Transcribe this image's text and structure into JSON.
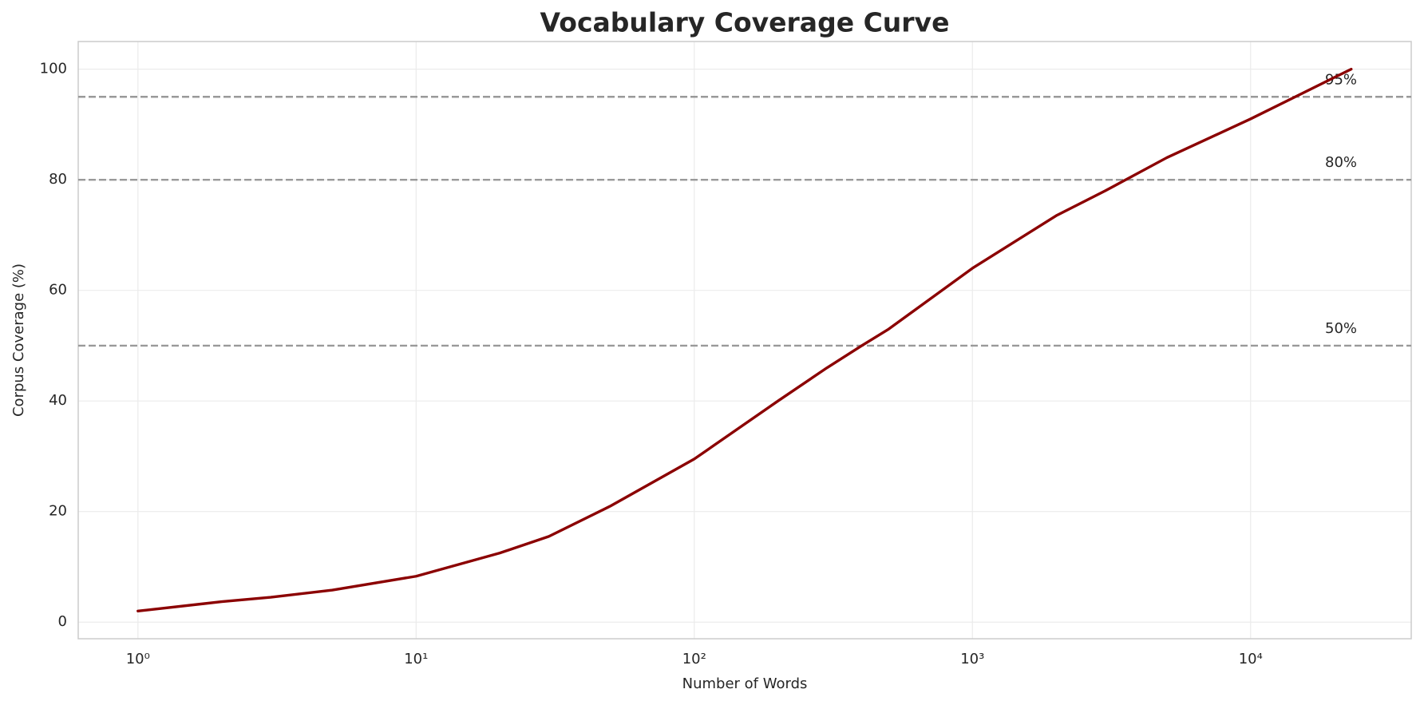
{
  "chart_data": {
    "type": "line",
    "title": "Vocabulary Coverage Curve",
    "x_label": "Number of Words",
    "y_label": "Corpus Coverage (%)",
    "x_scale": "log",
    "x": [
      1,
      2,
      3,
      5,
      10,
      20,
      30,
      50,
      100,
      200,
      300,
      400,
      500,
      1000,
      2000,
      3000,
      5000,
      10000,
      20000,
      23000
    ],
    "values": [
      2,
      3.7,
      4.5,
      5.8,
      8.3,
      12.5,
      15.5,
      21,
      29.5,
      40,
      46,
      50,
      53,
      64,
      73.5,
      78,
      84,
      91,
      98.5,
      100
    ],
    "color": "#8b0000",
    "xlim": [
      0.61,
      37800
    ],
    "ylim": [
      -3,
      105
    ],
    "xticks": [
      {
        "value": 1,
        "label": "10⁰"
      },
      {
        "value": 10,
        "label": "10¹"
      },
      {
        "value": 100,
        "label": "10²"
      },
      {
        "value": 1000,
        "label": "10³"
      },
      {
        "value": 10000,
        "label": "10⁴"
      }
    ],
    "yticks": [
      0,
      20,
      40,
      60,
      80,
      100
    ],
    "grid": true,
    "hlines": [
      {
        "value": 50,
        "label": "50%"
      },
      {
        "value": 80,
        "label": "80%"
      },
      {
        "value": 95,
        "label": "95%"
      }
    ],
    "hline_color": "#999999"
  }
}
